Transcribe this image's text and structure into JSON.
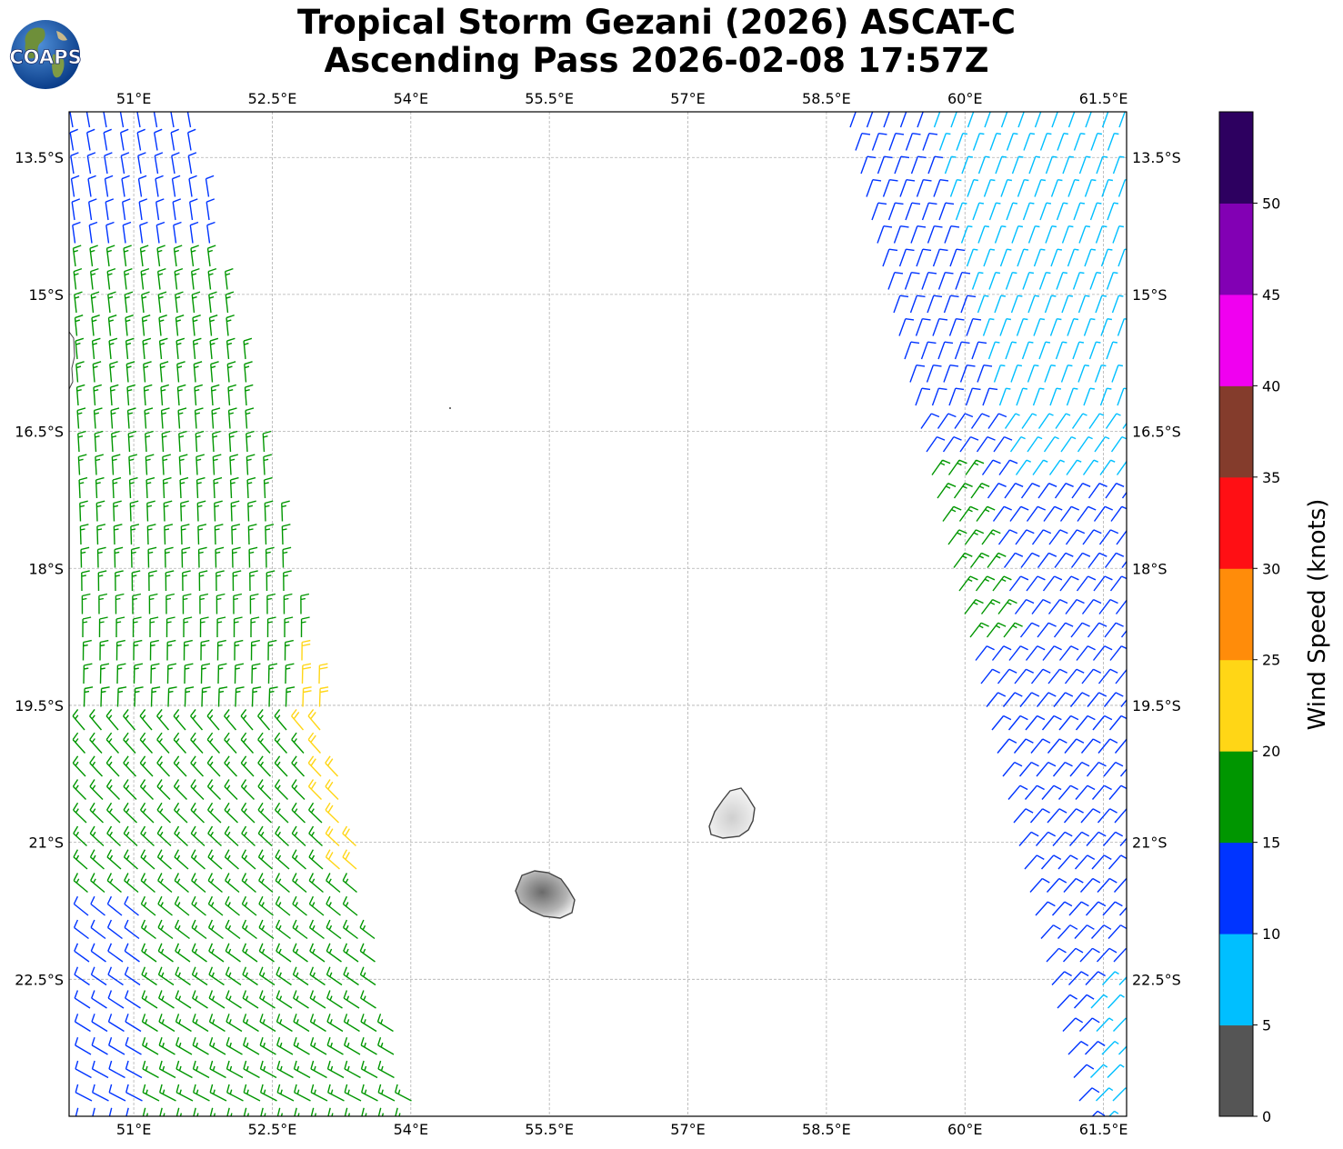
{
  "title": {
    "line1": "Tropical Storm Gezani (2026) ASCAT-C",
    "line2": "Ascending Pass 2026-02-08 17:57Z"
  },
  "logo": {
    "text": "COAPS",
    "icon": "earth-globe-icon"
  },
  "map": {
    "lon_range": [
      50.3,
      61.75
    ],
    "lat_range": [
      -24.0,
      -13.0
    ],
    "lon_ticks": [
      "51°E",
      "52.5°E",
      "54°E",
      "55.5°E",
      "57°E",
      "58.5°E",
      "60°E",
      "61.5°E"
    ],
    "lat_ticks": [
      "13.5°S",
      "15°S",
      "16.5°S",
      "18°S",
      "19.5°S",
      "21°S",
      "22.5°S"
    ],
    "gridlines": "dashed",
    "islands": [
      "Réunion",
      "Mauritius"
    ]
  },
  "colorbar": {
    "label": "Wind Speed (knots)",
    "ticks": [
      "0",
      "5",
      "10",
      "15",
      "20",
      "25",
      "30",
      "35",
      "40",
      "45",
      "50"
    ],
    "bins": [
      {
        "range": [
          0,
          5
        ],
        "color": "#555555"
      },
      {
        "range": [
          5,
          10
        ],
        "color": "#00bfff"
      },
      {
        "range": [
          10,
          15
        ],
        "color": "#0034ff"
      },
      {
        "range": [
          15,
          20
        ],
        "color": "#009600"
      },
      {
        "range": [
          20,
          25
        ],
        "color": "#ffd616"
      },
      {
        "range": [
          25,
          30
        ],
        "color": "#ff8c0a"
      },
      {
        "range": [
          30,
          35
        ],
        "color": "#ff0f14"
      },
      {
        "range": [
          35,
          40
        ],
        "color": "#843c2c"
      },
      {
        "range": [
          40,
          45
        ],
        "color": "#f000f0"
      },
      {
        "range": [
          45,
          50
        ],
        "color": "#8200b4"
      },
      {
        "range": [
          50,
          55
        ],
        "color": "#2d0060"
      }
    ]
  }
}
